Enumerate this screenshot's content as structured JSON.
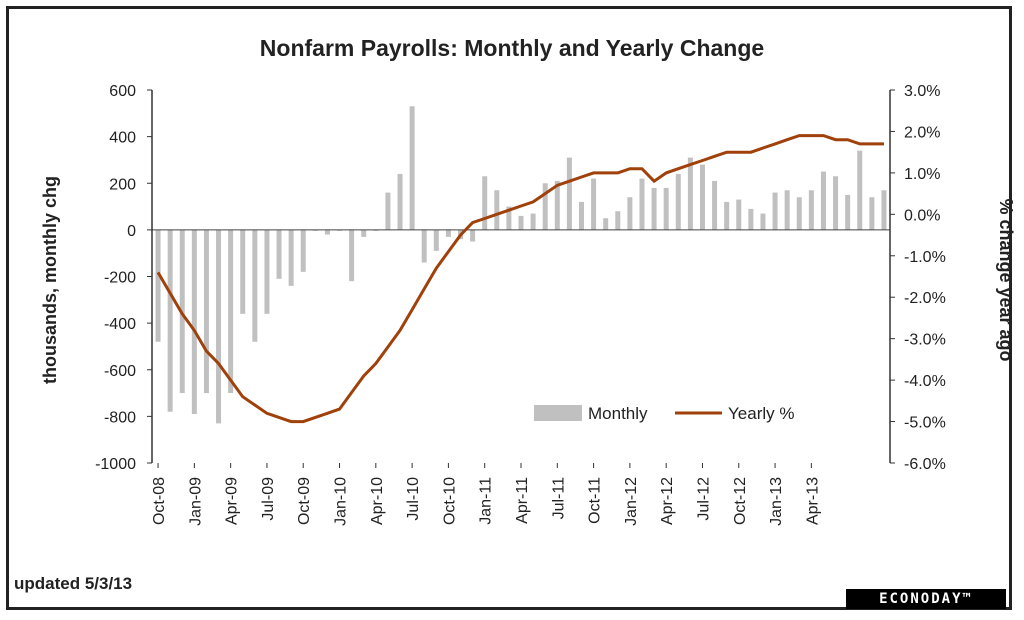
{
  "footer": {
    "updated": "updated 5/3/13",
    "logo": "ECONODAY™"
  },
  "chart_data": {
    "type": "bar+line",
    "title": "Nonfarm Payrolls: Monthly and Yearly Change",
    "ylabel_left": "thousands, monthly chg",
    "ylabel_right": "% change year ago",
    "ylim_left": [
      -1000,
      600
    ],
    "ylim_right": [
      -6,
      3
    ],
    "yticks_left": [
      "600",
      "400",
      "200",
      "0",
      "-200",
      "-400",
      "-600",
      "-800",
      "-1000"
    ],
    "yticks_right": [
      "3.0%",
      "2.0%",
      "1.0%",
      "0.0%",
      "-1.0%",
      "-2.0%",
      "-3.0%",
      "-4.0%",
      "-5.0%",
      "-6.0%"
    ],
    "x_tick_labels": [
      "Oct-08",
      "Jan-09",
      "Apr-09",
      "Jul-09",
      "Oct-09",
      "Jan-10",
      "Apr-10",
      "Jul-10",
      "Oct-10",
      "Jan-11",
      "Apr-11",
      "Jul-11",
      "Oct-11",
      "Jan-12",
      "Apr-12",
      "Jul-12",
      "Oct-12",
      "Jan-13",
      "Apr-13"
    ],
    "grid": false,
    "legend_position": "lower-right",
    "bar_color": "#c0c0c0",
    "line_color": "#a0400a",
    "series": [
      {
        "name": "Monthly",
        "type": "bar",
        "axis": "left",
        "values": [
          -480,
          -780,
          -700,
          -790,
          -700,
          -830,
          -700,
          -360,
          -480,
          -360,
          -210,
          -240,
          -180,
          0,
          -20,
          0,
          -220,
          -30,
          0,
          160,
          240,
          530,
          -140,
          -90,
          -30,
          -40,
          -50,
          230,
          170,
          100,
          60,
          70,
          200,
          210,
          310,
          120,
          220,
          50,
          80,
          140,
          220,
          180,
          180,
          240,
          310,
          280,
          210,
          120,
          130,
          90,
          70,
          160,
          170,
          140,
          170,
          250,
          230,
          150,
          340,
          140,
          170
        ],
        "labels": [
          "Oct-08",
          "Nov-08",
          "Dec-08",
          "Jan-09",
          "Feb-09",
          "Mar-09",
          "Apr-09",
          "May-09",
          "Jun-09",
          "Jul-09",
          "Aug-09",
          "Sep-09",
          "Oct-09",
          "Nov-09",
          "Dec-09",
          "Jan-10",
          "Feb-10",
          "Mar-10",
          "Apr-10",
          "May-10",
          "Jun-10",
          "Jul-10",
          "Aug-10",
          "Sep-10",
          "Oct-10",
          "Nov-10",
          "Dec-10",
          "Jan-11",
          "Feb-11",
          "Mar-11",
          "Apr-11",
          "May-11",
          "Jun-11",
          "Jul-11",
          "Aug-11",
          "Sep-11",
          "Oct-11",
          "Nov-11",
          "Dec-11",
          "Jan-12",
          "Feb-12",
          "Mar-12",
          "Apr-12",
          "May-12",
          "Jun-12",
          "Jul-12",
          "Aug-12",
          "Sep-12",
          "Oct-12",
          "Nov-12",
          "Dec-12",
          "Jan-13",
          "Feb-13",
          "Mar-13",
          "Apr-13",
          "May-13",
          "Jun-13",
          "Jul-13",
          "Aug-13",
          "Sep-13",
          "Oct-13"
        ]
      },
      {
        "name": "Yearly %",
        "type": "line",
        "axis": "right",
        "values": [
          -1.4,
          -1.9,
          -2.4,
          -2.8,
          -3.3,
          -3.6,
          -4.0,
          -4.4,
          -4.6,
          -4.8,
          -4.9,
          -5.0,
          -5.0,
          -4.9,
          -4.8,
          -4.7,
          -4.3,
          -3.9,
          -3.6,
          -3.2,
          -2.8,
          -2.3,
          -1.8,
          -1.3,
          -0.9,
          -0.5,
          -0.2,
          -0.1,
          0.0,
          0.1,
          0.2,
          0.3,
          0.5,
          0.7,
          0.8,
          0.9,
          1.0,
          1.0,
          1.0,
          1.1,
          1.1,
          0.8,
          1.0,
          1.1,
          1.2,
          1.3,
          1.4,
          1.5,
          1.5,
          1.5,
          1.6,
          1.7,
          1.8,
          1.9,
          1.9,
          1.9,
          1.8,
          1.8,
          1.7,
          1.7,
          1.7
        ],
        "labels": [
          "Oct-08",
          "Nov-08",
          "Dec-08",
          "Jan-09",
          "Feb-09",
          "Mar-09",
          "Apr-09",
          "May-09",
          "Jun-09",
          "Jul-09",
          "Aug-09",
          "Sep-09",
          "Oct-09",
          "Nov-09",
          "Dec-09",
          "Jan-10",
          "Feb-10",
          "Mar-10",
          "Apr-10",
          "May-10",
          "Jun-10",
          "Jul-10",
          "Aug-10",
          "Sep-10",
          "Oct-10",
          "Nov-10",
          "Dec-10",
          "Jan-11",
          "Feb-11",
          "Mar-11",
          "Apr-11",
          "May-11",
          "Jun-11",
          "Jul-11",
          "Aug-11",
          "Sep-11",
          "Oct-11",
          "Nov-11",
          "Dec-11",
          "Jan-12",
          "Feb-12",
          "Mar-12",
          "Apr-12",
          "May-12",
          "Jun-12",
          "Jul-12",
          "Aug-12",
          "Sep-12",
          "Oct-12",
          "Nov-12",
          "Dec-12",
          "Jan-13",
          "Feb-13",
          "Mar-13",
          "Apr-13",
          "May-13",
          "Jun-13",
          "Jul-13",
          "Aug-13",
          "Sep-13",
          "Oct-13"
        ]
      }
    ]
  }
}
